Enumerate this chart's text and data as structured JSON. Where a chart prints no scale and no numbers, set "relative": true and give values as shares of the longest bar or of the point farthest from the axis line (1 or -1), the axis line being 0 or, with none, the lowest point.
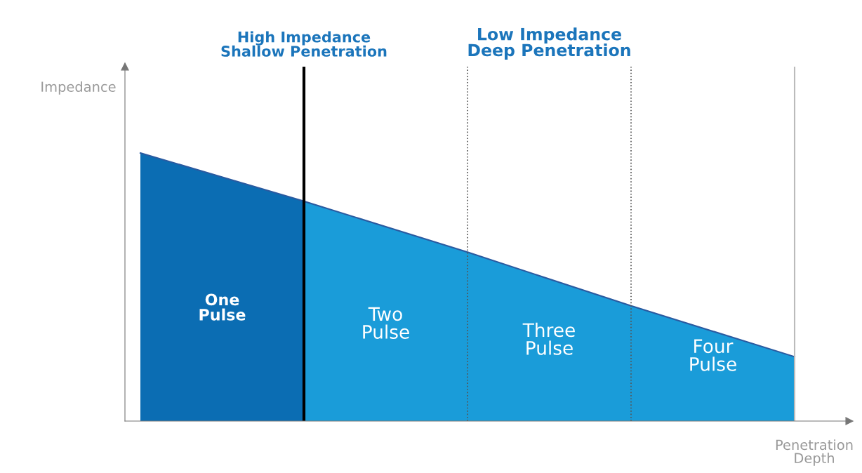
{
  "chart_data": {
    "type": "area",
    "relative": true,
    "xlabel": "Penetration\nDepth",
    "ylabel": "Impedance",
    "categories": [
      null,
      null,
      null,
      null,
      null
    ],
    "series": [
      {
        "color": "#0b6db3",
        "values": [
          1,
          0.82,
          null,
          null,
          null
        ]
      },
      {
        "color": "#1a9cd9",
        "values": [
          null,
          0.82,
          0.63,
          0.43,
          0.24
        ]
      }
    ],
    "annotations": [
      "One\nPulse",
      "Two\nPulse",
      "Three\nPulse",
      "Four\nPulse",
      "High Impedance\nShallow Penetration",
      "Low Impedance\nDeep Penetration"
    ]
  }
}
